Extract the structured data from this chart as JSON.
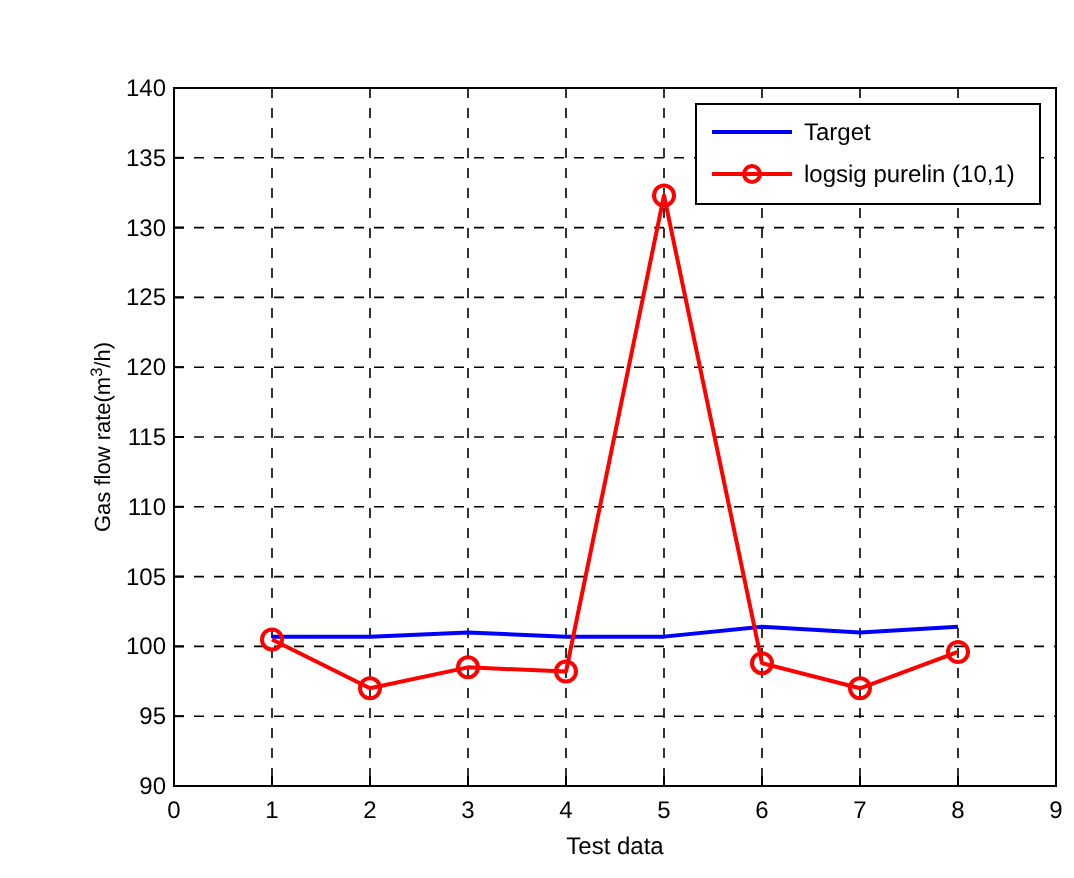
{
  "chart_data": {
    "type": "line",
    "xlabel": "Test data",
    "ylabel": "Gas flow rate(m$^{3}$/h)",
    "x": [
      1,
      2,
      3,
      4,
      5,
      6,
      7,
      8
    ],
    "series": [
      {
        "name": "Target",
        "color": "#0000ff",
        "values": [
          100.7,
          100.7,
          101.0,
          100.7,
          100.7,
          101.4,
          101.0,
          101.4
        ],
        "marker": "none"
      },
      {
        "name": "logsig purelin (10,1)",
        "color": "#ff0000",
        "values": [
          100.5,
          97.0,
          98.5,
          98.2,
          132.3,
          98.8,
          97.0,
          99.6
        ],
        "marker": "circle"
      }
    ],
    "xlim": [
      0,
      9
    ],
    "xticks": [
      0,
      1,
      2,
      3,
      4,
      5,
      6,
      7,
      8,
      9
    ],
    "ylim": [
      90,
      140
    ],
    "yticks": [
      90,
      95,
      100,
      105,
      110,
      115,
      120,
      125,
      130,
      135,
      140
    ],
    "grid": true,
    "legend": "top right"
  }
}
